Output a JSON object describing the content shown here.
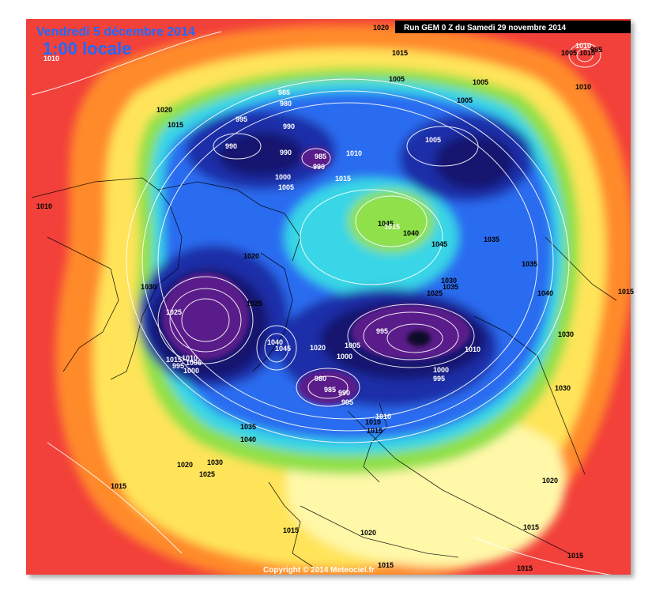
{
  "header": {
    "date": "Vendredi 5 décembre 2014",
    "time": "1:00 locale",
    "run": "Run GEM 0 Z du Samedi 29 novembre 2014"
  },
  "footer": {
    "copyright": "Copyright © 2014 Meteociel.fr"
  },
  "colors": {
    "red": "#f2403a",
    "orange": "#ff8a2a",
    "yellow": "#ffe45a",
    "pale_yellow": "#fff8a8",
    "green": "#8fe04a",
    "cyan": "#38d6e6",
    "blue": "#2a6cf0",
    "dark_blue": "#1a2ea8",
    "navy": "#121870",
    "purple": "#5a1a8a",
    "black_core": "#0a0a2a"
  },
  "isobar_labels": [
    {
      "id": "l1",
      "text": "1020"
    },
    {
      "id": "l2",
      "text": "1015"
    },
    {
      "id": "l3",
      "text": "1005"
    },
    {
      "id": "l4",
      "text": "1010"
    },
    {
      "id": "l5",
      "text": "995"
    },
    {
      "id": "l6",
      "text": "1010"
    },
    {
      "id": "l7",
      "text": "1005"
    },
    {
      "id": "l8",
      "text": "1005"
    },
    {
      "id": "l9",
      "text": "1005"
    },
    {
      "id": "l10",
      "text": "985"
    },
    {
      "id": "l11",
      "text": "980"
    },
    {
      "id": "l12",
      "text": "1020"
    },
    {
      "id": "l13",
      "text": "1015"
    },
    {
      "id": "l14",
      "text": "995"
    },
    {
      "id": "l15",
      "text": "990"
    },
    {
      "id": "l16",
      "text": "990"
    },
    {
      "id": "l17",
      "text": "990"
    },
    {
      "id": "l18",
      "text": "985"
    },
    {
      "id": "l19",
      "text": "990"
    },
    {
      "id": "l20",
      "text": "1010"
    },
    {
      "id": "l21",
      "text": "1005"
    },
    {
      "id": "l22",
      "text": "1000"
    },
    {
      "id": "l23",
      "text": "1005"
    },
    {
      "id": "l24",
      "text": "1015"
    },
    {
      "id": "l25",
      "text": "1010"
    },
    {
      "id": "l26",
      "text": "1045"
    },
    {
      "id": "l27",
      "text": "1040"
    },
    {
      "id": "l28",
      "text": "1045"
    },
    {
      "id": "l29",
      "text": "1035"
    },
    {
      "id": "l30",
      "text": "1020"
    },
    {
      "id": "l31",
      "text": "1030"
    },
    {
      "id": "l32",
      "text": "1025"
    },
    {
      "id": "l33",
      "text": "1035"
    },
    {
      "id": "l34",
      "text": "1030"
    },
    {
      "id": "l35",
      "text": "1025"
    },
    {
      "id": "l36",
      "text": "1035"
    },
    {
      "id": "l37",
      "text": "1040"
    },
    {
      "id": "l38",
      "text": "1015"
    },
    {
      "id": "l39",
      "text": "1025"
    },
    {
      "id": "l40",
      "text": "995"
    },
    {
      "id": "l41",
      "text": "1040"
    },
    {
      "id": "l42",
      "text": "1045"
    },
    {
      "id": "l43",
      "text": "1020"
    },
    {
      "id": "l44",
      "text": "1005"
    },
    {
      "id": "l45",
      "text": "1000"
    },
    {
      "id": "l46",
      "text": "1010"
    },
    {
      "id": "l47",
      "text": "1015"
    },
    {
      "id": "l48",
      "text": "1010"
    },
    {
      "id": "l49",
      "text": "1005"
    },
    {
      "id": "l50",
      "text": "1000"
    },
    {
      "id": "l51",
      "text": "980"
    },
    {
      "id": "l52",
      "text": "985"
    },
    {
      "id": "l53",
      "text": "990"
    },
    {
      "id": "l54",
      "text": "995"
    },
    {
      "id": "l55",
      "text": "1000"
    },
    {
      "id": "l56",
      "text": "995"
    },
    {
      "id": "l57",
      "text": "1030"
    },
    {
      "id": "l58",
      "text": "1030"
    },
    {
      "id": "l59",
      "text": "1010"
    },
    {
      "id": "l60",
      "text": "1015"
    },
    {
      "id": "l61",
      "text": "1035"
    },
    {
      "id": "l62",
      "text": "1040"
    },
    {
      "id": "l63",
      "text": "1020"
    },
    {
      "id": "l64",
      "text": "1030"
    },
    {
      "id": "l65",
      "text": "1025"
    },
    {
      "id": "l66",
      "text": "1015"
    },
    {
      "id": "l67",
      "text": "1015"
    },
    {
      "id": "l68",
      "text": "1020"
    },
    {
      "id": "l69",
      "text": "1020"
    },
    {
      "id": "l70",
      "text": "1015"
    },
    {
      "id": "l71",
      "text": "1015"
    },
    {
      "id": "l72",
      "text": "1015"
    },
    {
      "id": "l73",
      "text": "1015"
    },
    {
      "id": "l74",
      "text": "1010"
    },
    {
      "id": "l75",
      "text": "1015"
    },
    {
      "id": "l76",
      "text": "1010"
    },
    {
      "id": "l77",
      "text": "995"
    },
    {
      "id": "l78",
      "text": "1010"
    }
  ]
}
